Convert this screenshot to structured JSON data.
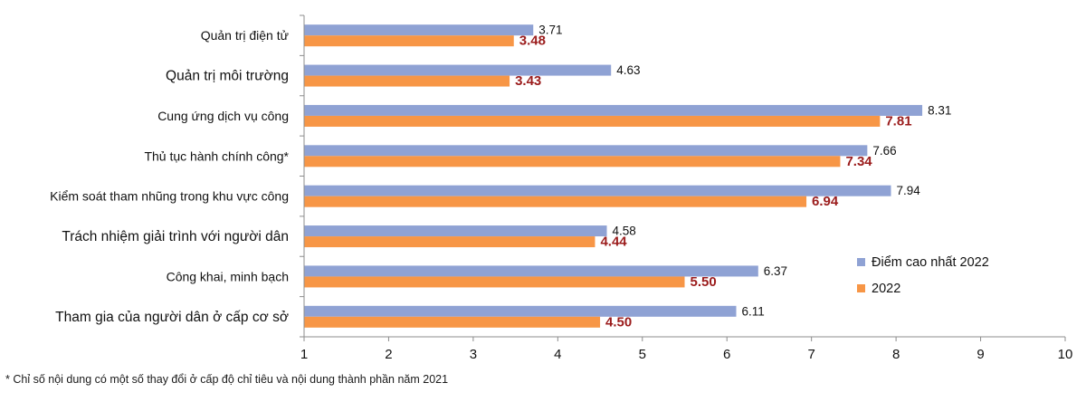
{
  "chart_data": {
    "type": "bar",
    "orientation": "horizontal",
    "categories": [
      "Quản trị điện tử",
      "Quản trị môi trường",
      "Cung ứng dịch vụ công",
      "Thủ tục hành chính công*",
      "Kiểm soát tham nhũng trong khu vực công",
      "Trách nhiệm giải trình với người dân",
      "Công khai, minh bạch",
      "Tham gia của người dân ở cấp cơ sở"
    ],
    "series": [
      {
        "name": "Điểm cao nhất 2022",
        "color": "#8fa2d4",
        "values": [
          3.71,
          4.63,
          8.31,
          7.66,
          7.94,
          4.58,
          6.37,
          6.11
        ],
        "labels": [
          "3.71",
          "4.63",
          "8.31",
          "7.66",
          "7.94",
          "4.58",
          "6.37",
          "6.11"
        ]
      },
      {
        "name": "2022",
        "color": "#f79646",
        "values": [
          3.48,
          3.43,
          7.81,
          7.34,
          6.94,
          4.44,
          5.5,
          4.5
        ],
        "labels": [
          "3.48",
          "3.43",
          "7.81",
          "7.34",
          "6.94",
          "4.44",
          "5.50",
          "4.50"
        ]
      }
    ],
    "xlim": [
      1,
      10
    ],
    "xticks": [
      "1",
      "2",
      "3",
      "4",
      "5",
      "6",
      "7",
      "8",
      "9",
      "10"
    ],
    "grid": false,
    "legend_position": "right"
  },
  "footnote": "* Chỉ số nội dung có một số thay đổi ở cấp độ chỉ tiêu và nội dung thành phần năm 2021"
}
